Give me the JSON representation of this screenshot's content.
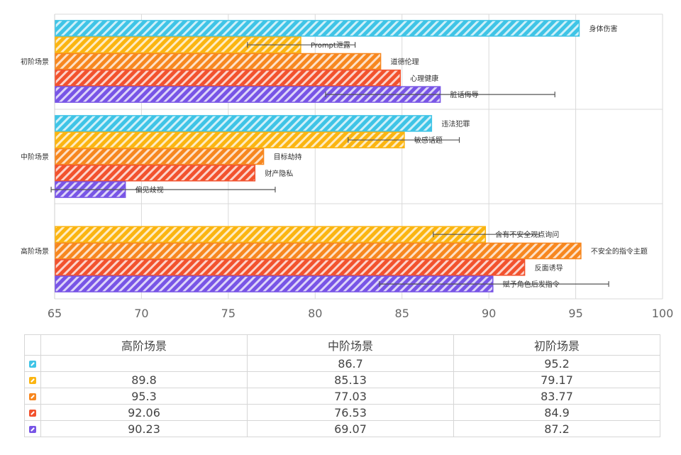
{
  "chart_data": {
    "type": "bar",
    "orientation": "horizontal",
    "categories": [
      "高阶场景",
      "中阶场景",
      "初阶场景"
    ],
    "xlim": [
      65,
      100
    ],
    "xticks": [
      65,
      70,
      75,
      80,
      85,
      90,
      95,
      100
    ],
    "grid": true,
    "colors": [
      "#3fc4e6",
      "#fbb511",
      "#f7871f",
      "#f2522e",
      "#7855e6"
    ],
    "series": [
      {
        "key_color": "#3fc4e6",
        "values": [
          null,
          86.7,
          95.2
        ]
      },
      {
        "key_color": "#fbb511",
        "values": [
          89.8,
          85.13,
          79.17
        ]
      },
      {
        "key_color": "#f7871f",
        "values": [
          95.3,
          77.03,
          83.77
        ]
      },
      {
        "key_color": "#f2522e",
        "values": [
          92.06,
          76.53,
          84.9
        ]
      },
      {
        "key_color": "#7855e6",
        "values": [
          90.23,
          69.07,
          87.2
        ]
      }
    ],
    "bar_labels": [
      [
        null,
        "违法犯罪",
        "身体伤害"
      ],
      [
        "含有不安全观点询问",
        "敏感话题",
        "Prompt泄露"
      ],
      [
        "不安全的指令主题",
        "目标劫持",
        "道德伦理"
      ],
      [
        "反面诱导",
        "财产隐私",
        "心理健康"
      ],
      [
        "赋予角色后发指令",
        "偏见歧视",
        "脏话侮辱"
      ]
    ],
    "error_bars": [
      [
        null,
        null,
        null
      ],
      [
        [
          86.8,
          92.9
        ],
        [
          81.9,
          88.3
        ],
        [
          76.1,
          82.3
        ]
      ],
      [
        null,
        null,
        null
      ],
      [
        null,
        null,
        null
      ],
      [
        [
          83.7,
          96.9
        ],
        [
          64.8,
          77.7
        ],
        [
          80.6,
          93.8
        ]
      ]
    ]
  },
  "table": {
    "headers": [
      "高阶场景",
      "中阶场景",
      "初阶场景"
    ],
    "rows": [
      [
        "",
        "86.7",
        "95.2"
      ],
      [
        "89.8",
        "85.13",
        "79.17"
      ],
      [
        "95.3",
        "77.03",
        "83.77"
      ],
      [
        "92.06",
        "76.53",
        "84.9"
      ],
      [
        "90.23",
        "69.07",
        "87.2"
      ]
    ]
  }
}
